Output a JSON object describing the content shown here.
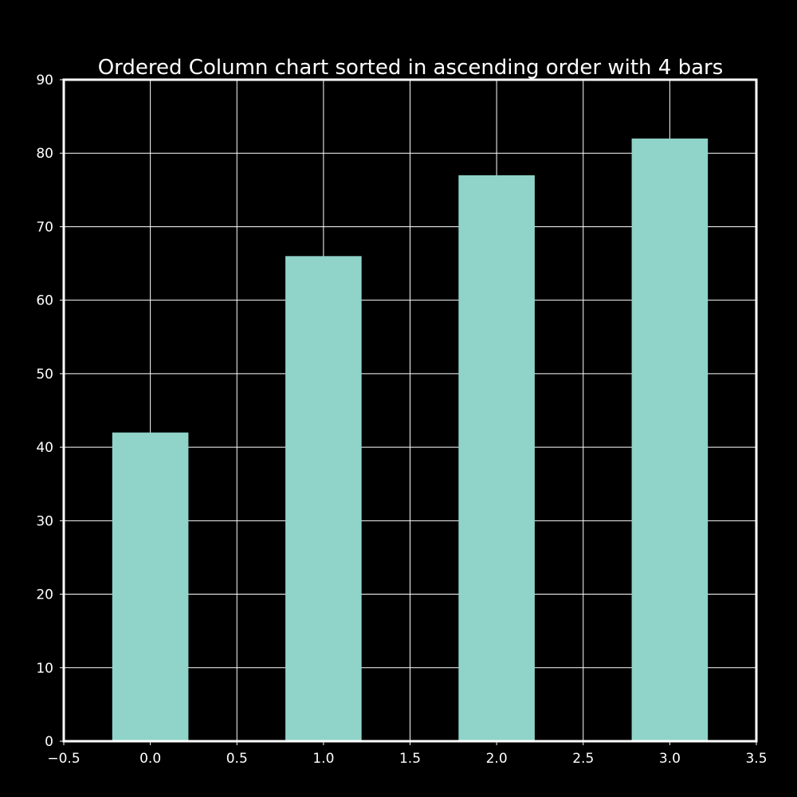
{
  "chart_data": {
    "type": "bar",
    "title": "Ordered Column chart sorted in ascending order with 4 bars",
    "xlabel": "",
    "ylabel": "",
    "x": [
      0,
      1,
      2,
      3
    ],
    "values": [
      42,
      66,
      77,
      82
    ],
    "xlim": [
      -0.5,
      3.5
    ],
    "ylim": [
      0,
      90
    ],
    "xticks": [
      -0.5,
      0.0,
      0.5,
      1.0,
      1.5,
      2.0,
      2.5,
      3.0,
      3.5
    ],
    "xtick_labels": [
      "−0.5",
      "0.0",
      "0.5",
      "1.0",
      "1.5",
      "2.0",
      "2.5",
      "3.0",
      "3.5"
    ],
    "yticks": [
      0,
      10,
      20,
      30,
      40,
      50,
      60,
      70,
      80,
      90
    ],
    "ytick_labels": [
      "0",
      "10",
      "20",
      "30",
      "40",
      "50",
      "60",
      "70",
      "80",
      "90"
    ],
    "bar_width": 0.44,
    "grid": true,
    "colors": {
      "background": "#000000",
      "bar": "#8fd3c9",
      "grid": "#ffffff",
      "axes": "#ffffff",
      "text": "#ffffff"
    }
  }
}
